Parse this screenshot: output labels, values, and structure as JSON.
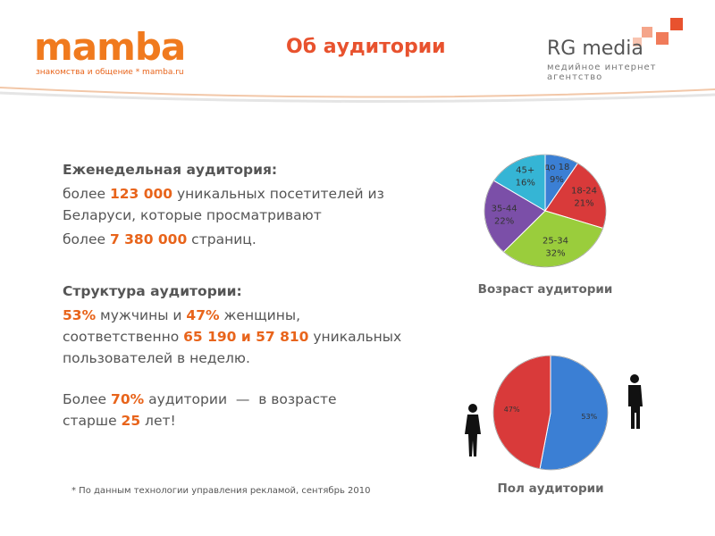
{
  "header": {
    "logo": "mamba",
    "tagline": "знакомства и общение * mamba.ru",
    "title": "Об аудитории",
    "agency": "RG media",
    "agency_tagline": "медийное интернет агентство"
  },
  "body": [
    {
      "heading": "Еженедельная аудитория:",
      "top": true,
      "lines": [
        [
          "более ",
          {
            "text": "123 000",
            "color": "#e8641b"
          },
          " уникальных посетителей из"
        ],
        [
          "Беларуси, которые просматривают"
        ]
      ]
    },
    {
      "lines": [
        [
          "более ",
          {
            "text": "7 380 000",
            "color": "#e8641b"
          },
          " страниц."
        ]
      ]
    },
    {
      "heading": "Структура аудитории:",
      "lines": [
        [
          {
            "text": "53%",
            "color": "#e8641b"
          },
          " мужчины и ",
          {
            "text": "47%",
            "color": "#e8641b"
          },
          " женщины,"
        ],
        [
          "соответственно ",
          {
            "text": "65 190 и 57 810",
            "color": "#e8641b"
          },
          " уникальных"
        ],
        [
          "пользователей в неделю."
        ]
      ]
    },
    {
      "lines": [
        [
          "Более ",
          {
            "text": "70%",
            "color": "#e8641b"
          },
          " аудитории  —  в возрасте"
        ],
        [
          "старше ",
          {
            "text": "25",
            "color": "#e8641b"
          },
          " лет!"
        ]
      ]
    }
  ],
  "footnote": "* По данным технологии управления рекламой, сентябрь 2010",
  "chart_data": [
    {
      "type": "pie",
      "title": "Возраст аудитории",
      "categories": [
        "до 18",
        "18-24",
        "25-34",
        "35-44",
        "45+"
      ],
      "values": [
        9,
        21,
        32,
        22,
        16
      ],
      "value_labels": [
        "9%",
        "21%",
        "32%",
        "22%",
        "16%"
      ],
      "colors": [
        "#3b7fd4",
        "#d93a3a",
        "#9acd3c",
        "#7b4fa8",
        "#35b5d5"
      ]
    },
    {
      "type": "pie",
      "title": "Пол аудитории",
      "categories": [
        null,
        null
      ],
      "values": [
        53,
        47
      ],
      "value_labels": [
        "53%",
        "47%"
      ],
      "colors": [
        "#3b7fd4",
        "#d93a3a"
      ]
    }
  ]
}
